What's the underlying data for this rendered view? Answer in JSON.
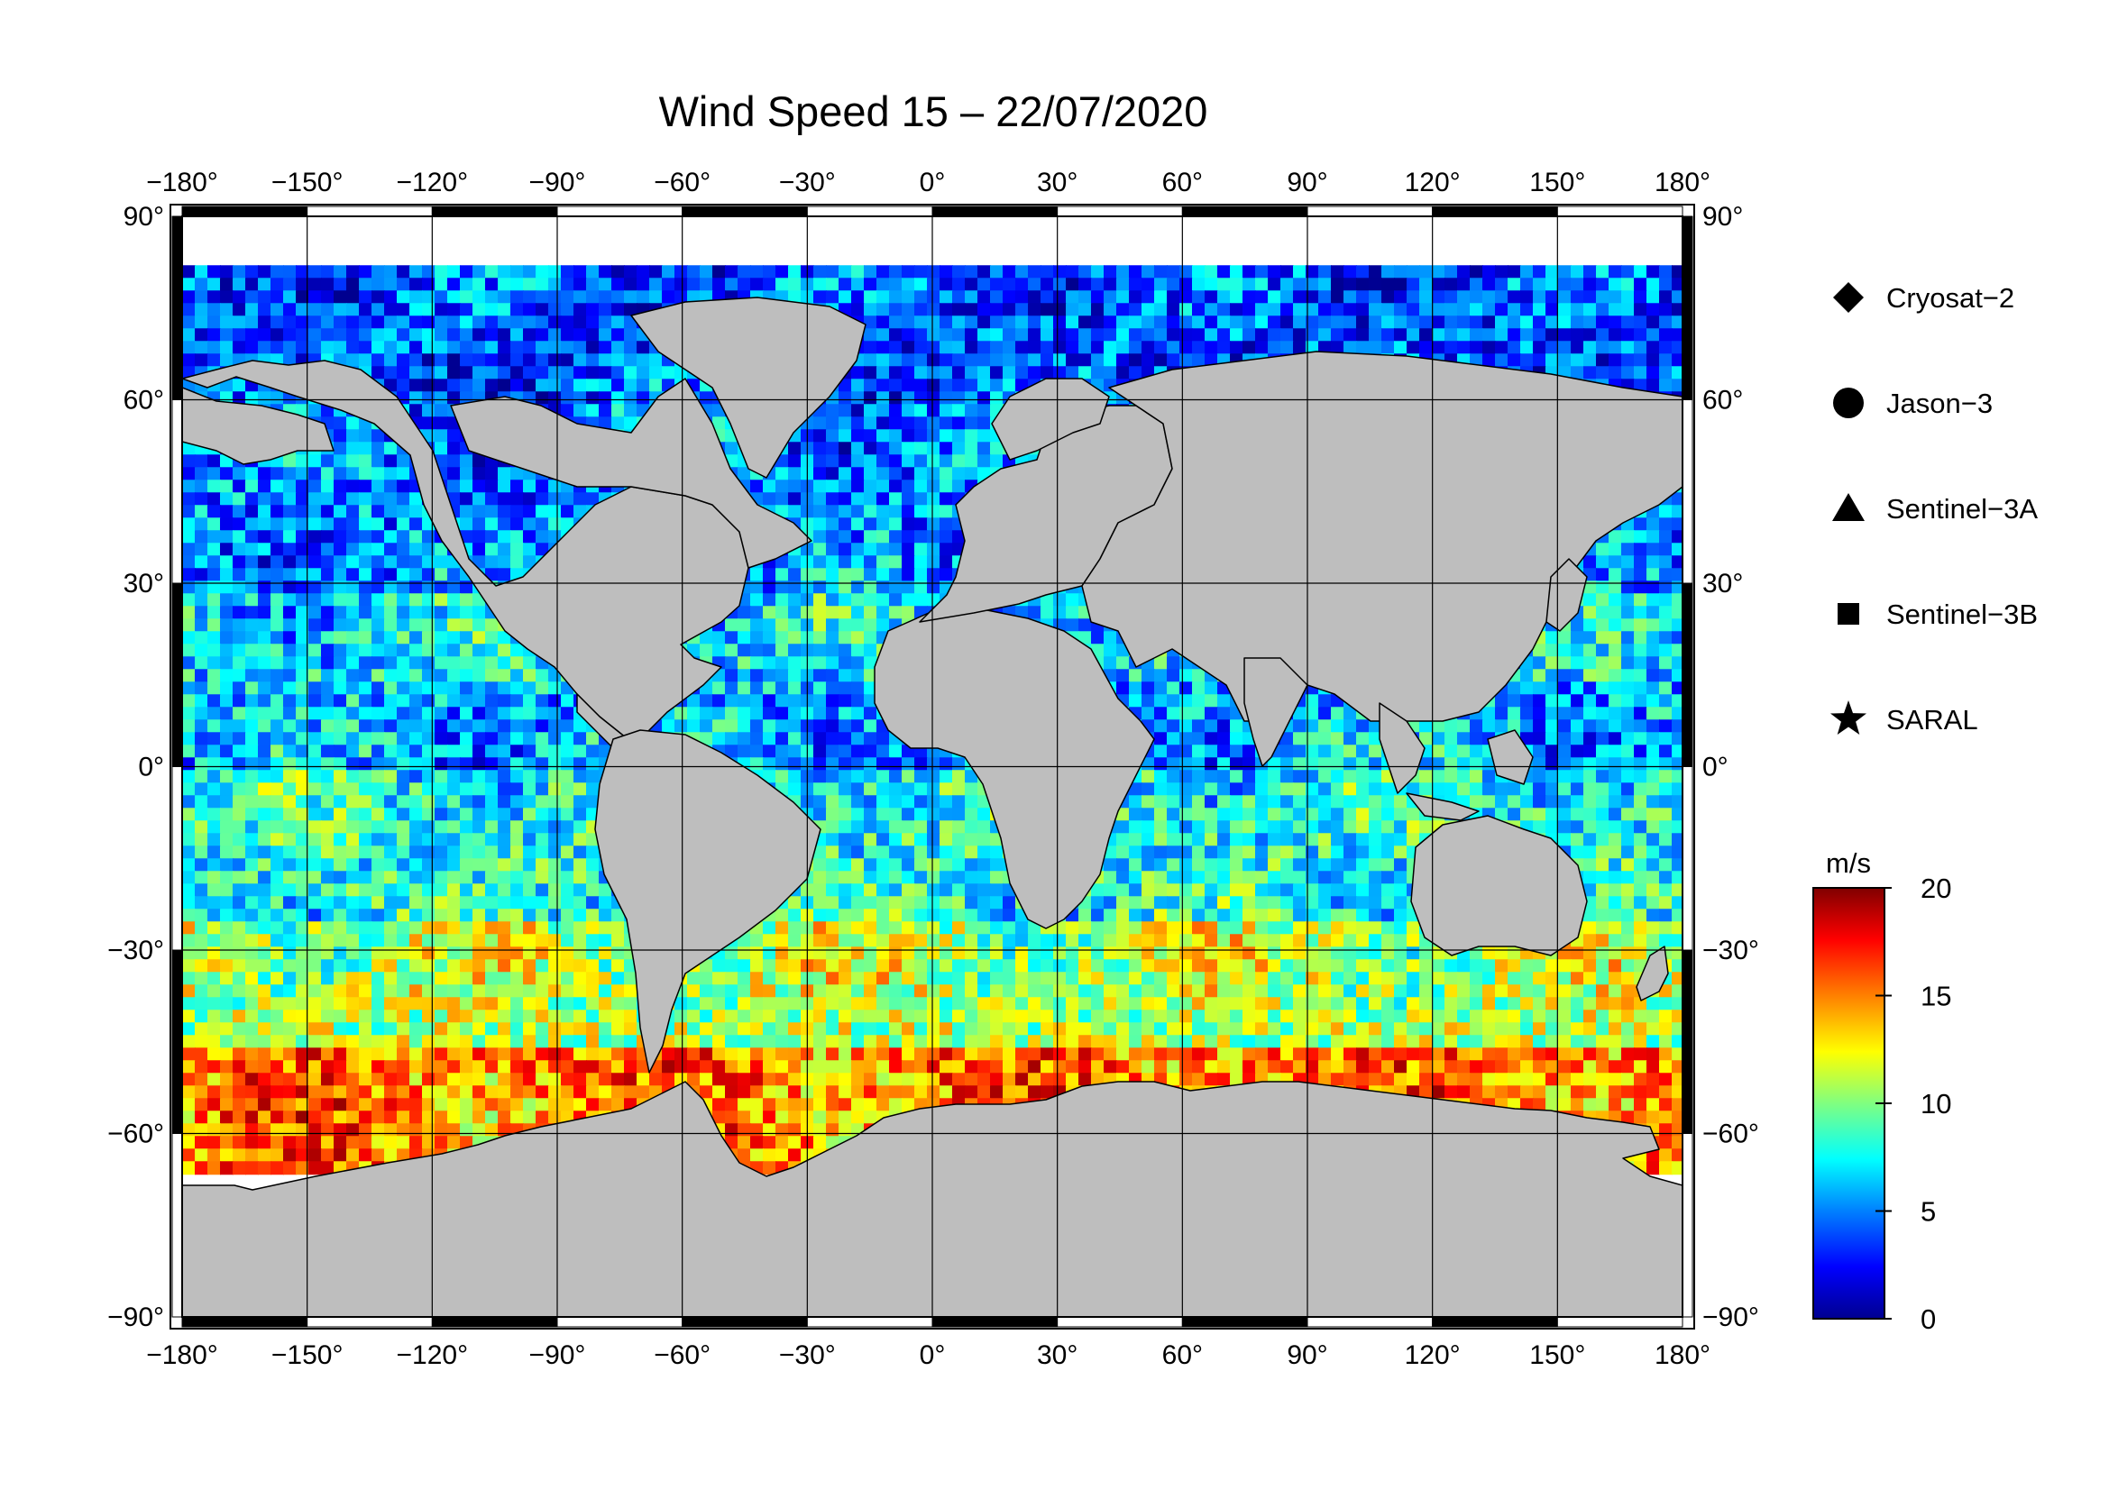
{
  "title": "Wind Speed 15 – 22/07/2020",
  "lon_ticks": [
    "−180°",
    "−150°",
    "−120°",
    "−90°",
    "−60°",
    "−30°",
    "0°",
    "30°",
    "60°",
    "90°",
    "120°",
    "150°",
    "180°"
  ],
  "lat_ticks": [
    "90°",
    "60°",
    "30°",
    "0°",
    "−30°",
    "−60°",
    "−90°"
  ],
  "lon_values": [
    -180,
    -150,
    -120,
    -90,
    -60,
    -30,
    0,
    30,
    60,
    90,
    120,
    150,
    180
  ],
  "lat_values": [
    90,
    60,
    30,
    0,
    -30,
    -60,
    -90
  ],
  "legend": [
    {
      "label": "Cryosat−2",
      "icon": "diamond"
    },
    {
      "label": "Jason−3",
      "icon": "circle"
    },
    {
      "label": "Sentinel−3A",
      "icon": "triangle"
    },
    {
      "label": "Sentinel−3B",
      "icon": "square"
    },
    {
      "label": "SARAL",
      "icon": "star"
    }
  ],
  "colorbar": {
    "unit": "m/s",
    "min": 0,
    "max": 20,
    "ticks": [
      {
        "value": 20,
        "label": "20"
      },
      {
        "value": 15,
        "label": "15"
      },
      {
        "value": 10,
        "label": "10"
      },
      {
        "value": 5,
        "label": "5"
      },
      {
        "value": 0,
        "label": "0"
      }
    ],
    "colors": [
      "#00008f",
      "#0000ff",
      "#0080ff",
      "#00ffff",
      "#80ff80",
      "#ffff00",
      "#ff8000",
      "#ff0000",
      "#800000"
    ]
  },
  "colors": {
    "land": "#bebebe",
    "ice": "#ffffff",
    "coastline": "#000000"
  },
  "chart_data": {
    "type": "heatmap",
    "title": "Wind Speed 15 – 22/07/2020",
    "xlim": [
      -180,
      180
    ],
    "ylim": [
      -90,
      90
    ],
    "unit": "m/s",
    "colorbar_range": [
      0,
      20
    ],
    "lat_bands": [
      {
        "lat_range": [
          60,
          82
        ],
        "wind_ms": 4
      },
      {
        "lat_range": [
          30,
          60
        ],
        "wind_ms": 5
      },
      {
        "lat_range": [
          15,
          30
        ],
        "wind_ms": 7
      },
      {
        "lat_range": [
          0,
          15
        ],
        "wind_ms": 6
      },
      {
        "lat_range": [
          -25,
          0
        ],
        "wind_ms": 8
      },
      {
        "lat_range": [
          -45,
          -25
        ],
        "wind_ms": 11
      },
      {
        "lat_range": [
          -65,
          -45
        ],
        "wind_ms": 15
      }
    ]
  }
}
